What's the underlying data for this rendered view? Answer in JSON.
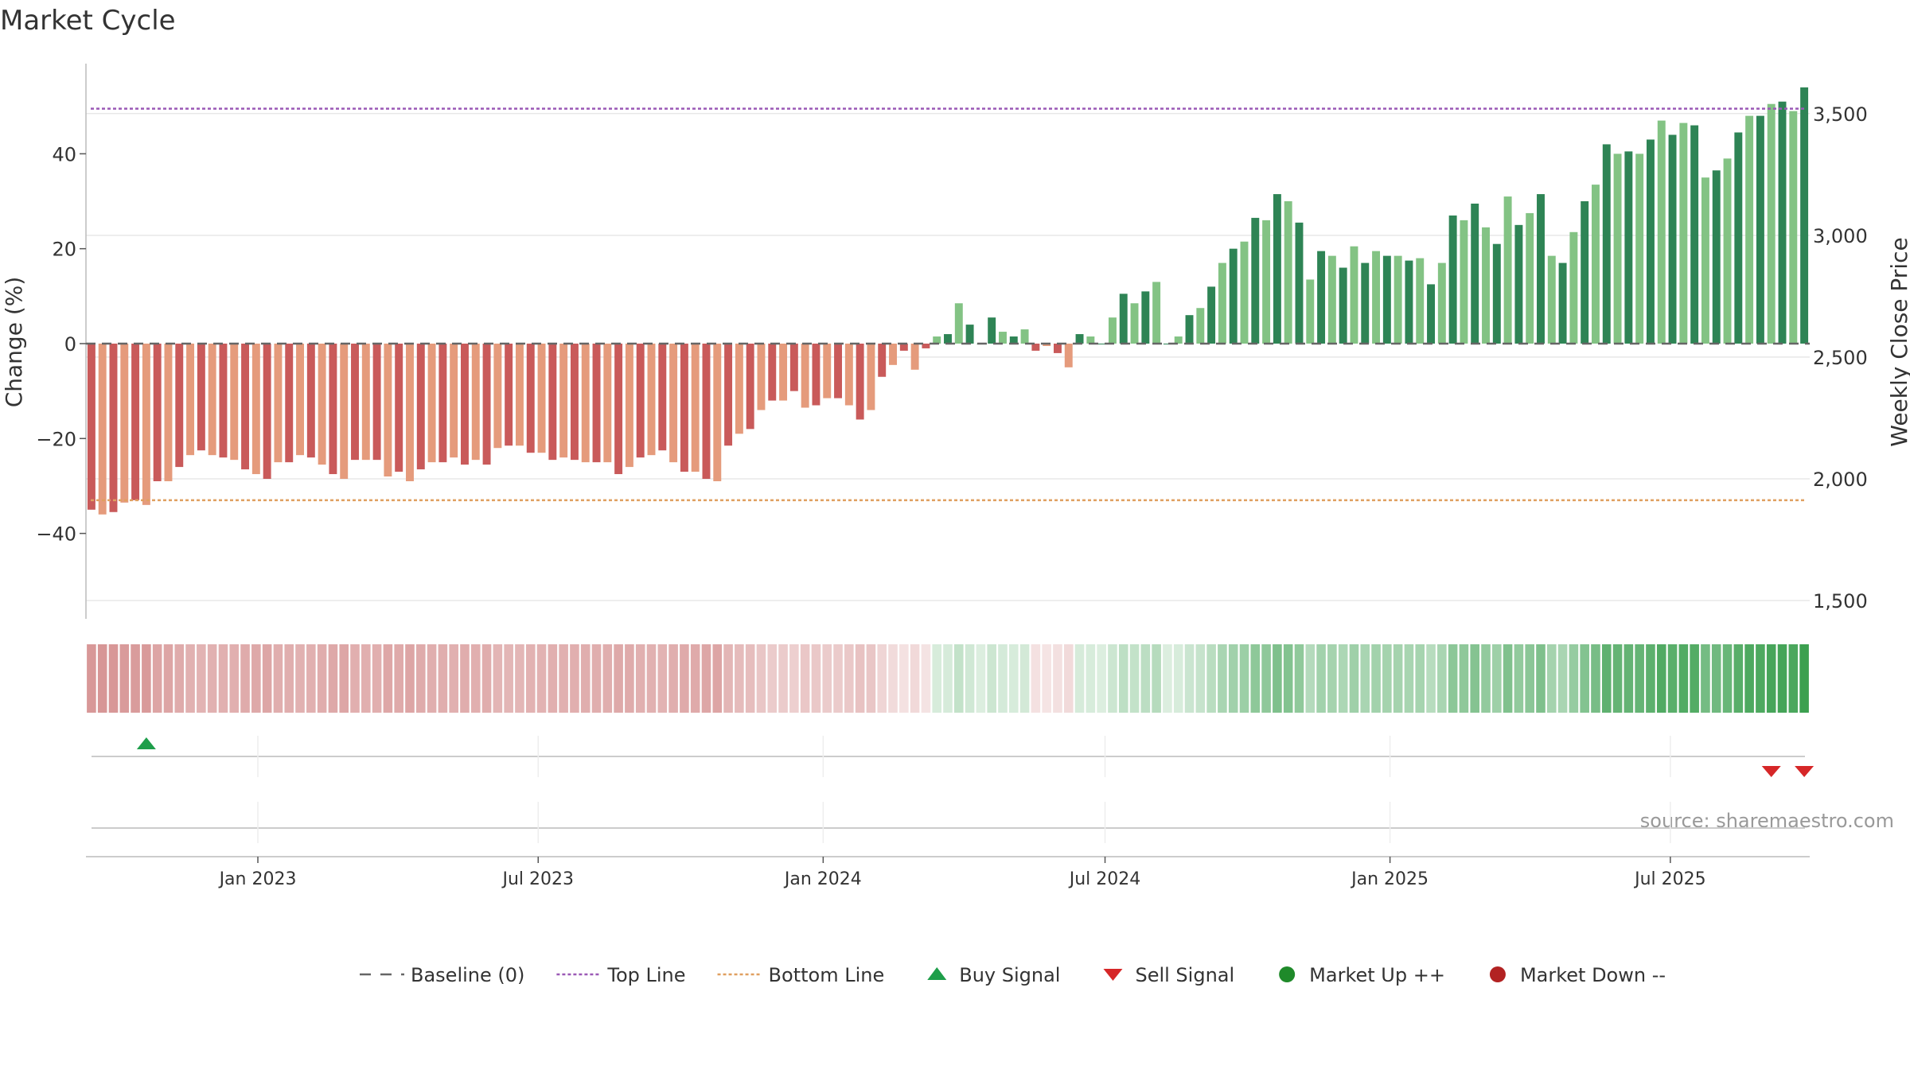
{
  "chart_data": {
    "type": "bar",
    "title": "Market Cycle",
    "ylabel_left": "Change (%)",
    "ylabel_right": "Weekly Close Price",
    "source": "source: sharemaestro.com",
    "left_axis": {
      "ylim": [
        -58,
        59
      ],
      "ticks": [
        40,
        20,
        0,
        -20,
        -40
      ],
      "tick_labels": [
        "40",
        "20",
        "0",
        "−20",
        "−40"
      ]
    },
    "right_axis": {
      "ylim": [
        1425,
        3705
      ],
      "ticks": [
        3500,
        3000,
        2500,
        2000,
        1500
      ],
      "tick_labels": [
        "3,500",
        "3,000",
        "2,500",
        "2,000",
        "1,500"
      ]
    },
    "x_axis": {
      "start_date": "2022-09-12",
      "end_date": "2025-09-29",
      "ticks": [
        {
          "date": "2023-01-01",
          "label": "Jan 2023"
        },
        {
          "date": "2023-07-01",
          "label": "Jul 2023"
        },
        {
          "date": "2024-01-01",
          "label": "Jan 2024"
        },
        {
          "date": "2024-07-01",
          "label": "Jul 2024"
        },
        {
          "date": "2025-01-01",
          "label": "Jan 2025"
        },
        {
          "date": "2025-07-01",
          "label": "Jul 2025"
        }
      ]
    },
    "reference_lines": {
      "baseline": 0,
      "top": 49.5,
      "bottom": -33
    },
    "values": [
      -35,
      -36,
      -35.5,
      -33.5,
      -33,
      -34,
      -29,
      -29,
      -26,
      -23.5,
      -22.5,
      -23.5,
      -24,
      -24.5,
      -26.5,
      -27.5,
      -28.5,
      -25,
      -25,
      -23.5,
      -24,
      -25.5,
      -27.5,
      -28.5,
      -24.5,
      -24.5,
      -24.5,
      -28,
      -27,
      -29,
      -26.5,
      -25,
      -25,
      -24,
      -25.5,
      -24.5,
      -25.5,
      -22,
      -21.5,
      -21.5,
      -23,
      -23,
      -24.5,
      -24,
      -24.5,
      -25,
      -25,
      -25,
      -27.5,
      -26,
      -24,
      -23.5,
      -22.5,
      -25,
      -27,
      -27,
      -28.5,
      -29,
      -21.5,
      -19,
      -18,
      -14,
      -12,
      -12,
      -10,
      -13.5,
      -13,
      -11.5,
      -11.5,
      -13,
      -16,
      -14,
      -7,
      -4.5,
      -1.5,
      -5.5,
      -1,
      1.5,
      2,
      8.5,
      4,
      0,
      5.5,
      2.5,
      1.5,
      3,
      -1.5,
      -0.5,
      -2,
      -5,
      2,
      1.5,
      0,
      5.5,
      10.5,
      8.5,
      11,
      13,
      0,
      1.5,
      6,
      7.5,
      12,
      17,
      20,
      21.5,
      26.5,
      26,
      31.5,
      30,
      25.5,
      13.5,
      19.5,
      18.5,
      16,
      20.5,
      17,
      19.5,
      18.5,
      18.5,
      17.5,
      18,
      12.5,
      17,
      27,
      26,
      29.5,
      24.5,
      21,
      31,
      25,
      27.5,
      31.5,
      18.5,
      17,
      23.5,
      30,
      33.5,
      42,
      40,
      40.5,
      40,
      43,
      47,
      44,
      46.5,
      46,
      35,
      36.5,
      39,
      44.5,
      48,
      48,
      50.5,
      51,
      49,
      54
    ],
    "legend": [
      {
        "label": "Baseline (0)",
        "kind": "dash-dark"
      },
      {
        "label": "Top Line",
        "kind": "dash-purple"
      },
      {
        "label": "Bottom Line",
        "kind": "dash-orange"
      },
      {
        "label": "Buy Signal",
        "kind": "triangle-up"
      },
      {
        "label": "Sell Signal",
        "kind": "triangle-down"
      },
      {
        "label": "Market Up ++",
        "kind": "circle-green"
      },
      {
        "label": "Market Down --",
        "kind": "circle-red"
      }
    ],
    "signals": [
      {
        "type": "buy",
        "index": 5
      },
      {
        "type": "sell",
        "index": 153
      },
      {
        "type": "sell",
        "index": 156
      }
    ],
    "colors": {
      "neg_dark": "#c95a5a",
      "neg_light": "#e59b7c",
      "pos_dark": "#2e8455",
      "pos_light": "#83c384",
      "top_line": "#9b59b6",
      "bottom_line": "#e0a060",
      "baseline": "#666666",
      "buy": "#1e9e4a",
      "sell": "#d62728",
      "market_up": "#1f8a2a",
      "market_down": "#b22222"
    }
  }
}
